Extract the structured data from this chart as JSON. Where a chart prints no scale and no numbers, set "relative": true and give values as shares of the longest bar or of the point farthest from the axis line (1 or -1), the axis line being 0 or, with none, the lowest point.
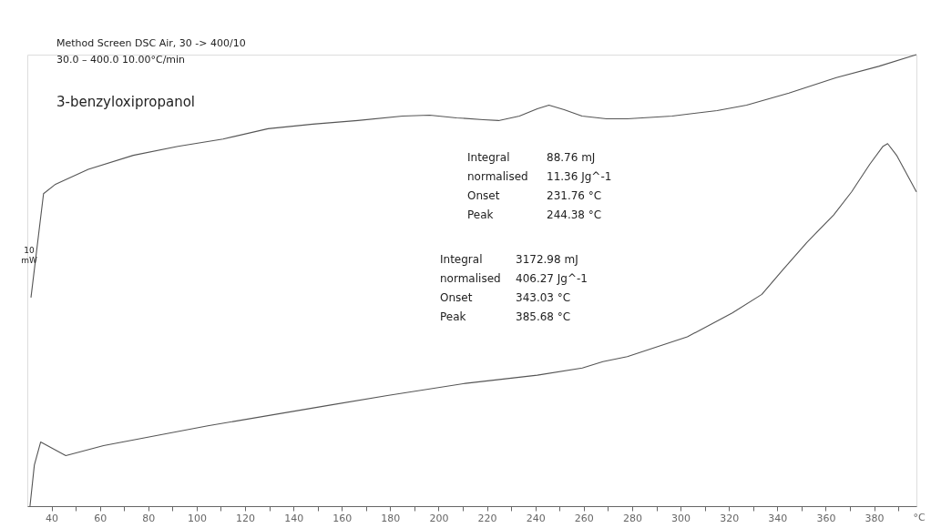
{
  "chart_data": {
    "type": "line",
    "relative": true,
    "xlabel": "°C",
    "xlim": [
      30,
      397.5
    ],
    "xticks": [
      40,
      {
        "value": 50,
        "label": null
      },
      60,
      {
        "value": 70,
        "label": null
      },
      80,
      {
        "value": 90,
        "label": null
      },
      100,
      {
        "value": 110,
        "label": null
      },
      120,
      {
        "value": 130,
        "label": null
      },
      140,
      {
        "value": 150,
        "label": null
      },
      160,
      {
        "value": 170,
        "label": null
      },
      180,
      {
        "value": 190,
        "label": null
      },
      200,
      {
        "value": 210,
        "label": null
      },
      220,
      {
        "value": 230,
        "label": null
      },
      240,
      {
        "value": 250,
        "label": null
      },
      260,
      {
        "value": 270,
        "label": null
      },
      280,
      {
        "value": 290,
        "label": null
      },
      300,
      {
        "value": 310,
        "label": null
      },
      320,
      {
        "value": 330,
        "label": null
      },
      340,
      {
        "value": 350,
        "label": null
      },
      360,
      {
        "value": 370,
        "label": null
      },
      380,
      {
        "value": 390,
        "label": null
      }
    ],
    "series": [
      {
        "color": "#555555",
        "x": [
          31.5,
          36.7,
          41.4,
          55.2,
          73.8,
          92.3,
          110.9,
          129.5,
          148.0,
          166.6,
          185.1,
          196.3,
          207.4,
          218.5,
          224.8,
          233.4,
          240.8,
          245.6,
          251.9,
          259.3,
          269.4,
          278.0,
          296.5,
          315.1,
          327.3,
          344.8,
          364.4,
          381.9,
          397.5
        ],
        "values": [
          0.462,
          0.692,
          0.712,
          0.746,
          0.777,
          0.797,
          0.813,
          0.836,
          0.846,
          0.854,
          0.864,
          0.866,
          0.86,
          0.856,
          0.854,
          0.864,
          0.88,
          0.888,
          0.878,
          0.864,
          0.858,
          0.858,
          0.864,
          0.876,
          0.888,
          0.915,
          0.949,
          0.974,
          1.0
        ]
      },
      {
        "color": "#555555",
        "x": [
          31.1,
          32.9,
          35.5,
          45.9,
          61.5,
          104.6,
          154.3,
          178.8,
          211.1,
          240.8,
          259.4,
          267.9,
          278.0,
          302.8,
          321.4,
          333.6,
          342.2,
          352.2,
          363.3,
          370.7,
          378.2,
          383.7,
          385.6,
          389.3,
          397.5
        ],
        "values": [
          0.0,
          0.091,
          0.142,
          0.112,
          0.134,
          0.178,
          0.223,
          0.245,
          0.272,
          0.29,
          0.306,
          0.32,
          0.331,
          0.375,
          0.428,
          0.469,
          0.523,
          0.584,
          0.645,
          0.696,
          0.757,
          0.797,
          0.803,
          0.777,
          0.696
        ]
      }
    ],
    "annotations": [
      "Method Screen DSC Air, 30 -> 400/10",
      "30.0 – 400.0 10.00°C/min",
      "3-benzyloxipropanol",
      "10 mW",
      "Integral",
      "88.76 mJ",
      " normalised",
      "11.36 Jg^-1",
      "Onset",
      "231.76 °C",
      "Peak",
      "244.38 °C",
      "Integral",
      "3172.98 mJ",
      " normalised",
      "406.27 Jg^-1",
      "Onset",
      "343.03 °C",
      "Peak",
      "385.68 °C"
    ],
    "legend": false,
    "grid": false,
    "line_style": "solid",
    "marker": "none"
  }
}
